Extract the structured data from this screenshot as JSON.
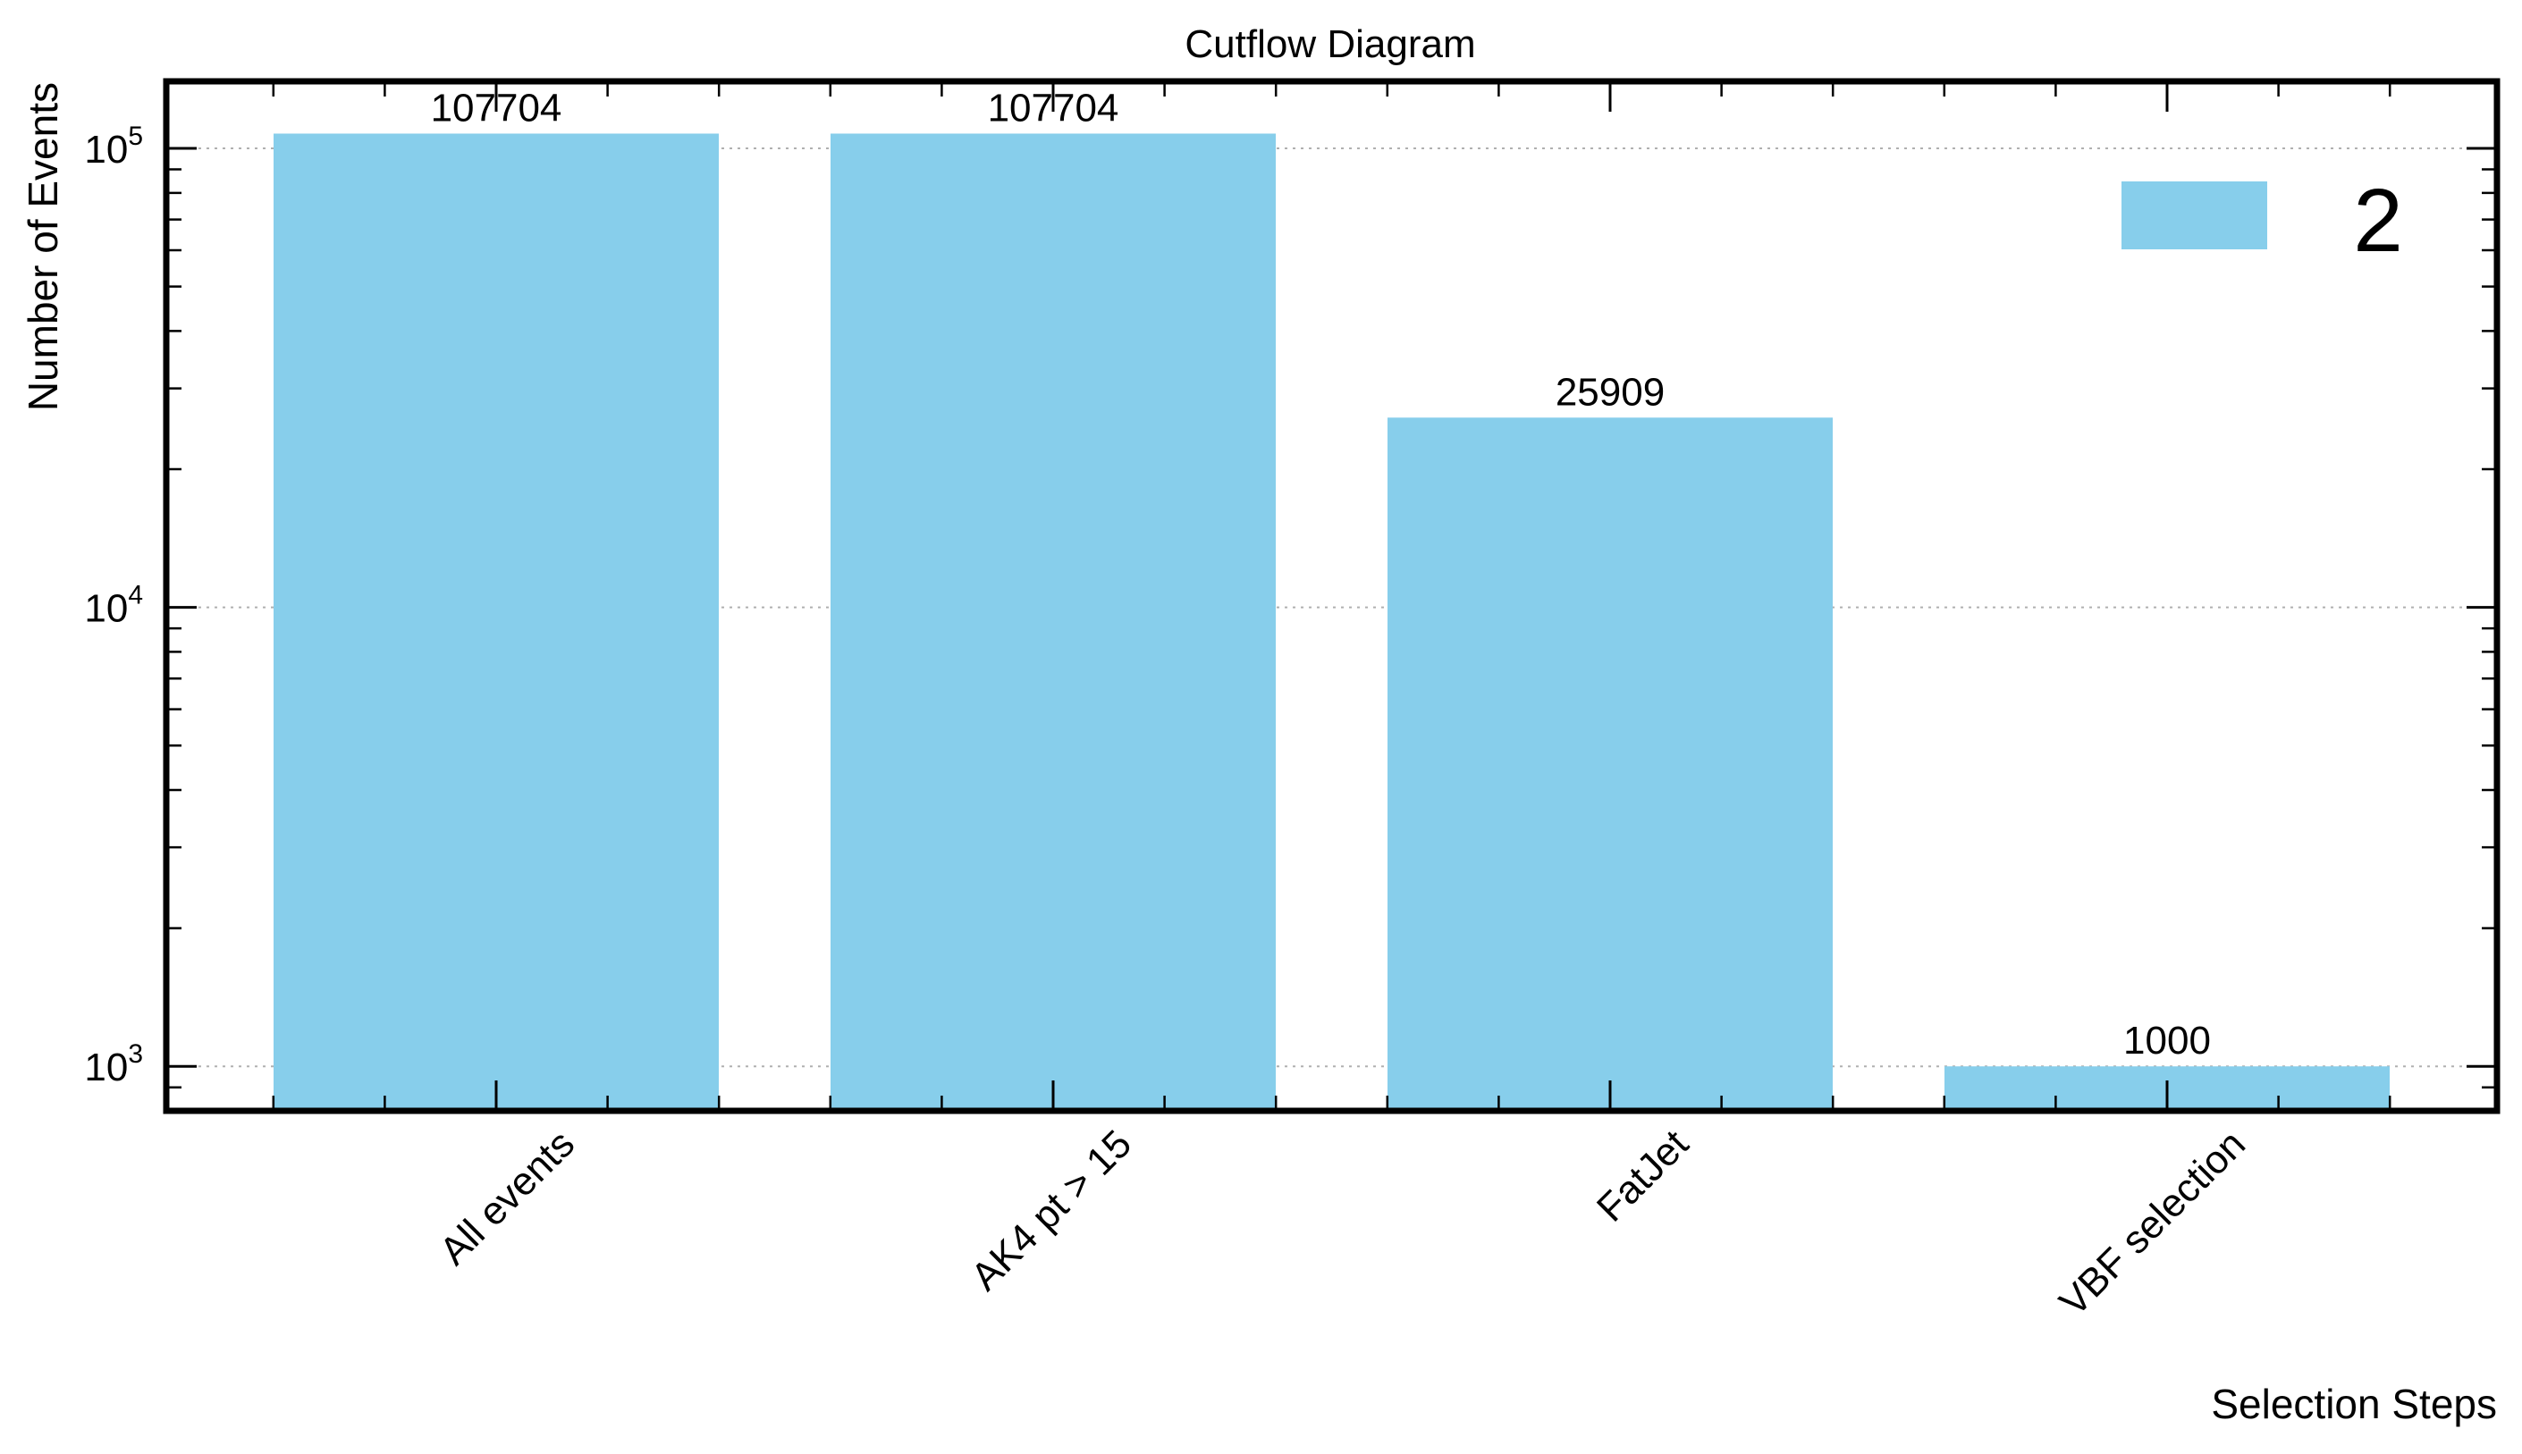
{
  "chart_data": {
    "type": "bar",
    "title": "Cutflow Diagram",
    "xlabel": "Selection Steps",
    "ylabel": "Number of Events",
    "categories": [
      "All events",
      "AK4 pt > 15",
      "FatJet",
      "VBF selection"
    ],
    "series": [
      {
        "name": "2",
        "values": [
          107704,
          107704,
          25909,
          1000
        ],
        "color": "#87CEEB"
      }
    ],
    "data_labels": [
      "107704",
      "107704",
      "25909",
      "1000"
    ],
    "y_scale": "log",
    "ylim": [
      800,
      140000
    ],
    "y_ticks": [
      {
        "base": "10",
        "exp": "3"
      },
      {
        "base": "10",
        "exp": "4"
      },
      {
        "base": "10",
        "exp": "5"
      }
    ],
    "grid": "horizontal-dotted",
    "legend_position": "top-right"
  }
}
